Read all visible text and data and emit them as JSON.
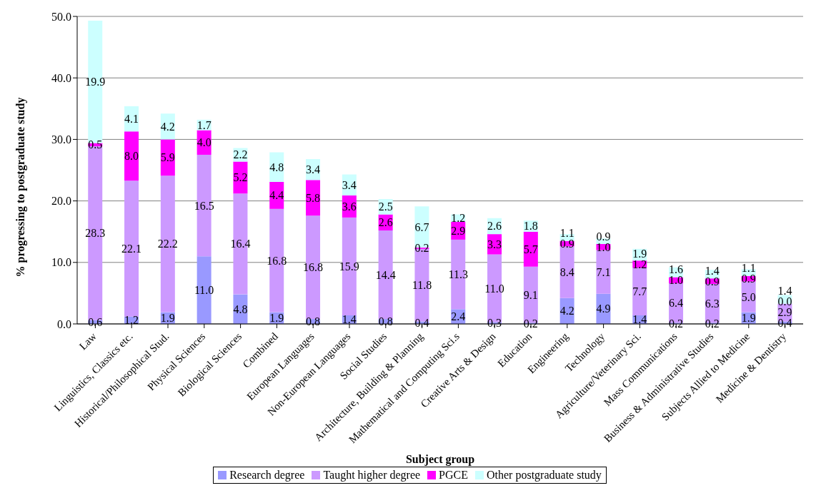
{
  "chart_data": {
    "type": "bar",
    "stacked": true,
    "xlabel": "Subject group",
    "ylabel": "% progressing to postgraduate study",
    "categories": [
      "Law",
      "Linguistics, Classics etc.",
      "Historical/Philosophical Stud.",
      "Physical Sciences",
      "Biological Sciences",
      "Combined",
      "European Languages",
      "Non-European Languages",
      "Social Studies",
      "Architecture, Building & Planning",
      "Mathematical and Computing Sci.s",
      "Creative Arts & Design",
      "Education",
      "Engineering",
      "Technology",
      "Agriculture/Veterinary Sci.",
      "Mass Communications",
      "Business & Administrative Studies",
      "Subjects Allied to Medicine",
      "Medicine & Dentistry"
    ],
    "series": [
      {
        "name": "Research degree",
        "color": "#9999ff",
        "values": [
          0.6,
          1.2,
          1.9,
          11.0,
          4.8,
          1.9,
          0.8,
          1.4,
          0.8,
          0.4,
          2.4,
          0.3,
          0.2,
          4.2,
          4.9,
          1.4,
          0.2,
          0.2,
          1.9,
          0.4
        ],
        "value_labels": [
          "0.6",
          "1.2",
          "1.9",
          "11.0",
          "4.8",
          "1.9",
          "0.8",
          "1.4",
          "0.8",
          "0.4",
          "2.4",
          "0.3",
          "0.2",
          "4.2",
          "4.9",
          "1.4",
          "0.2",
          "0.2",
          "1.9",
          "0.4"
        ]
      },
      {
        "name": "Taught higher degree",
        "color": "#cc99ff",
        "values": [
          28.3,
          22.1,
          22.2,
          16.5,
          16.4,
          16.8,
          16.8,
          15.9,
          14.4,
          11.8,
          11.3,
          11.0,
          9.1,
          8.4,
          7.1,
          7.7,
          6.4,
          6.3,
          5.0,
          2.9
        ],
        "value_labels": [
          "28.3",
          "22.1",
          "22.2",
          "16.5",
          "16.4",
          "16.8",
          "16.8",
          "15.9",
          "14.4",
          "11.8",
          "11.3",
          "11.0",
          "9.1",
          "8.4",
          "7.1",
          "7.7",
          "6.4",
          "6.3",
          "5.0",
          "2.9"
        ]
      },
      {
        "name": "PGCE",
        "color": "#ff00ff",
        "values": [
          0.5,
          8.0,
          5.9,
          4.0,
          5.2,
          4.4,
          5.8,
          3.6,
          2.6,
          0.2,
          2.9,
          3.3,
          5.7,
          0.9,
          1.0,
          1.2,
          1.0,
          0.9,
          0.9,
          0.0
        ],
        "value_labels": [
          "0.5",
          "8.0",
          "5.9",
          "4.0",
          "5.2",
          "4.4",
          "5.8",
          "3.6",
          "2.6",
          "0.2",
          "2.9",
          "3.3",
          "5.7",
          "0.9",
          "1.0",
          "1.2",
          "1.0",
          "0.9",
          "0.9",
          "0.0"
        ]
      },
      {
        "name": "Other postgraduate study",
        "color": "#ccffff",
        "values": [
          19.9,
          4.1,
          4.2,
          1.7,
          2.2,
          4.8,
          3.4,
          3.4,
          2.5,
          6.7,
          1.2,
          2.6,
          1.8,
          1.1,
          0.9,
          1.9,
          1.6,
          1.4,
          1.1,
          1.4
        ],
        "value_labels": [
          "19.9",
          "4.1",
          "4.2",
          "1.7",
          "2.2",
          "4.8",
          "3.4",
          "3.4",
          "2.5",
          "6.7",
          "1.2",
          "2.6",
          "1.8",
          "1.1",
          "0.9",
          "1.9",
          "1.6",
          "1.4",
          "1.1",
          "1.4"
        ]
      }
    ],
    "ylim": [
      0,
      50
    ],
    "yticks": [
      {
        "value": 0,
        "label": "0.0"
      },
      {
        "value": 10,
        "label": "10.0"
      },
      {
        "value": 20,
        "label": "20.0"
      },
      {
        "value": 30,
        "label": "30.0"
      },
      {
        "value": 40,
        "label": "40.0"
      },
      {
        "value": 50,
        "label": "50.0"
      }
    ],
    "grid": "y",
    "legend": "bottom"
  }
}
